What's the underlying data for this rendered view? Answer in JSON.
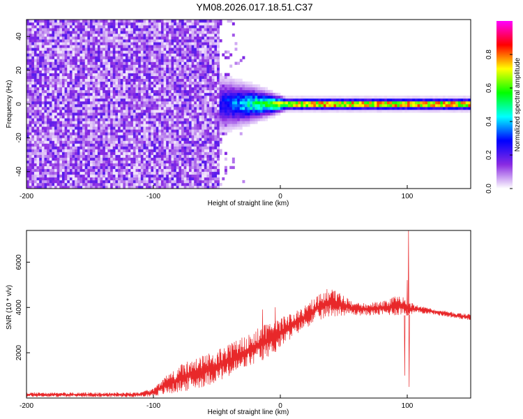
{
  "title": "YM08.2026.017.18.51.C37",
  "chart_data": [
    {
      "type": "heatmap",
      "xlabel": "Height of straight line (km)",
      "ylabel": "Frequency (Hz)",
      "xlim": [
        -200,
        150
      ],
      "ylim": [
        -50,
        50
      ],
      "xticks": [
        -200,
        -100,
        0,
        100
      ],
      "xtick_labels": [
        "-200",
        "-100",
        "0",
        "100"
      ],
      "yticks": [
        -40,
        -20,
        0,
        20,
        40
      ],
      "ytick_labels": [
        "-40",
        "-20",
        "0",
        "20",
        "40"
      ],
      "noise_region_x": [
        -200,
        -48
      ],
      "signal_ridge_start_x": -55,
      "signal_ridge_freq_hz": 0,
      "colorbar": {
        "label": "Normalized spectral amplitude",
        "range": [
          0,
          1
        ],
        "ticks": [
          0.0,
          0.2,
          0.4,
          0.6,
          0.8
        ],
        "tick_labels": [
          "0.0",
          "0.2",
          "0.4",
          "0.6",
          "0.8"
        ],
        "colors": [
          "#ffffff",
          "#8a2be2",
          "#0000ff",
          "#00ffff",
          "#00ff00",
          "#ffff00",
          "#ff0000",
          "#ff00ff"
        ]
      }
    },
    {
      "type": "line",
      "xlabel": "Height of straight line (km)",
      "ylabel": "SNR (10 * v/v)",
      "xlim": [
        -200,
        150
      ],
      "ylim": [
        0,
        7400
      ],
      "xticks": [
        -200,
        -100,
        0,
        100
      ],
      "xtick_labels": [
        "-200",
        "-100",
        "0",
        "100"
      ],
      "yticks": [
        2000,
        4000,
        6000
      ],
      "ytick_labels": [
        "2000",
        "4000",
        "6000"
      ],
      "color": "#e8282a",
      "envelope": {
        "x": [
          -200,
          -150,
          -110,
          -100,
          -90,
          -75,
          -60,
          -50,
          -40,
          -30,
          -20,
          -10,
          0,
          10,
          20,
          30,
          40,
          50,
          60,
          70,
          80,
          90,
          97,
          100,
          103,
          110,
          120,
          130,
          140,
          150
        ],
        "lo": [
          50,
          50,
          50,
          80,
          150,
          300,
          500,
          700,
          900,
          1200,
          1500,
          1800,
          2200,
          2700,
          3100,
          3400,
          3600,
          3650,
          3650,
          3650,
          3650,
          3650,
          3650,
          3650,
          3700,
          3750,
          3700,
          3600,
          3500,
          3450
        ],
        "hi": [
          250,
          250,
          250,
          450,
          1000,
          1600,
          1900,
          2100,
          2400,
          2700,
          3000,
          3300,
          3550,
          3800,
          4100,
          4600,
          4900,
          4500,
          4200,
          4200,
          4300,
          4500,
          4600,
          4300,
          4200,
          4050,
          3950,
          3850,
          3750,
          3700
        ]
      },
      "spikes": [
        {
          "x": -14,
          "y": 3900
        },
        {
          "x": -4,
          "y": 4000
        },
        {
          "x": 101,
          "y": 7400
        },
        {
          "x": 101.5,
          "y": 500
        },
        {
          "x": 100,
          "y": 5200
        },
        {
          "x": 98,
          "y": 1000
        }
      ]
    }
  ]
}
